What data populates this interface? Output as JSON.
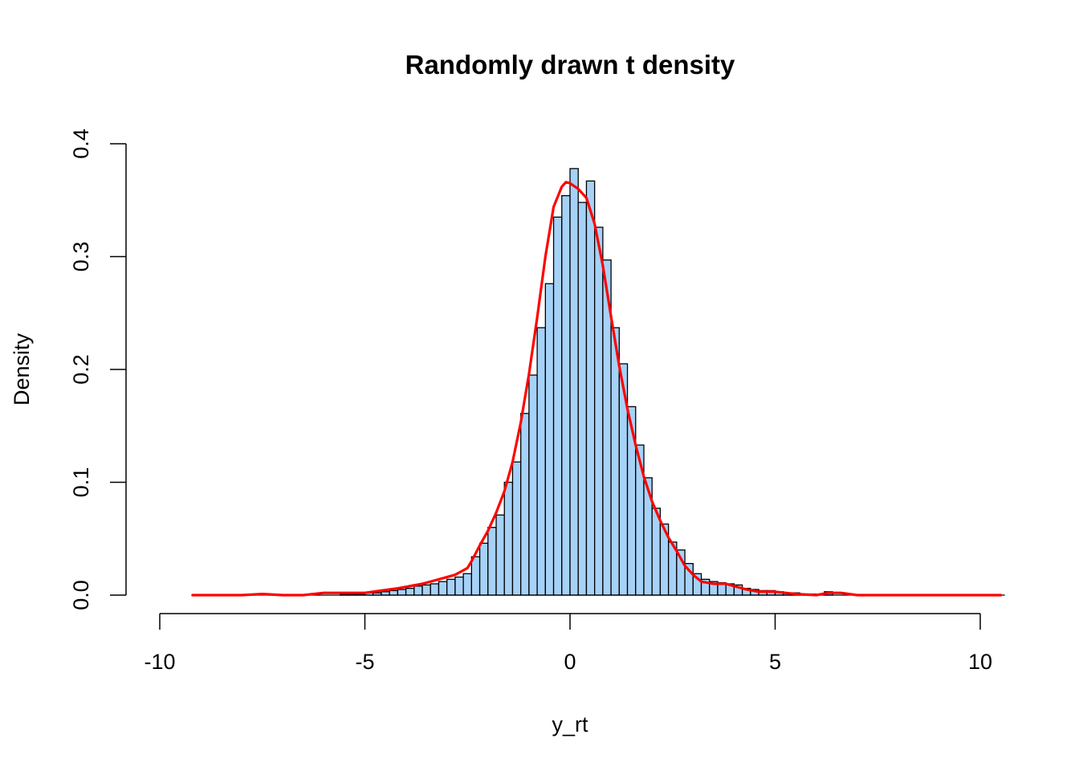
{
  "chart_data": {
    "type": "bar",
    "title": "Randomly drawn t density",
    "xlabel": "y_rt",
    "ylabel": "Density",
    "xlim": [
      -10,
      10
    ],
    "ylim": [
      0,
      0.4
    ],
    "x_ticks": [
      -10,
      -5,
      0,
      5,
      10
    ],
    "y_ticks": [
      0.0,
      0.1,
      0.2,
      0.3,
      0.4
    ],
    "x_tick_labels": [
      "-10",
      "-5",
      "0",
      "5",
      "10"
    ],
    "y_tick_labels": [
      "0.0",
      "0.1",
      "0.2",
      "0.3",
      "0.4"
    ],
    "grid": false,
    "legend": "none",
    "colors": {
      "bar_fill": "#a6d2f7",
      "bar_stroke": "#000000",
      "density_line": "#ff0000"
    },
    "histogram": {
      "bin_width": 0.2,
      "bins_start": -9.2,
      "bins_end": 10.6,
      "bars": [
        {
          "x0": -5.6,
          "density": 0.001
        },
        {
          "x0": -5.4,
          "density": 0.001
        },
        {
          "x0": -5.2,
          "density": 0.001
        },
        {
          "x0": -5.0,
          "density": 0.002
        },
        {
          "x0": -4.8,
          "density": 0.002
        },
        {
          "x0": -4.6,
          "density": 0.003
        },
        {
          "x0": -4.4,
          "density": 0.004
        },
        {
          "x0": -4.2,
          "density": 0.005
        },
        {
          "x0": -4.0,
          "density": 0.006
        },
        {
          "x0": -3.8,
          "density": 0.008
        },
        {
          "x0": -3.6,
          "density": 0.009
        },
        {
          "x0": -3.4,
          "density": 0.01
        },
        {
          "x0": -3.2,
          "density": 0.012
        },
        {
          "x0": -3.0,
          "density": 0.014
        },
        {
          "x0": -2.8,
          "density": 0.016
        },
        {
          "x0": -2.6,
          "density": 0.019
        },
        {
          "x0": -2.4,
          "density": 0.034
        },
        {
          "x0": -2.2,
          "density": 0.046
        },
        {
          "x0": -2.0,
          "density": 0.06
        },
        {
          "x0": -1.8,
          "density": 0.071
        },
        {
          "x0": -1.6,
          "density": 0.1
        },
        {
          "x0": -1.4,
          "density": 0.118
        },
        {
          "x0": -1.2,
          "density": 0.161
        },
        {
          "x0": -1.0,
          "density": 0.195
        },
        {
          "x0": -0.8,
          "density": 0.237
        },
        {
          "x0": -0.6,
          "density": 0.276
        },
        {
          "x0": -0.4,
          "density": 0.335
        },
        {
          "x0": -0.2,
          "density": 0.354
        },
        {
          "x0": 0.0,
          "density": 0.378
        },
        {
          "x0": 0.2,
          "density": 0.348
        },
        {
          "x0": 0.4,
          "density": 0.367
        },
        {
          "x0": 0.6,
          "density": 0.326
        },
        {
          "x0": 0.8,
          "density": 0.297
        },
        {
          "x0": 1.0,
          "density": 0.237
        },
        {
          "x0": 1.2,
          "density": 0.205
        },
        {
          "x0": 1.4,
          "density": 0.167
        },
        {
          "x0": 1.6,
          "density": 0.133
        },
        {
          "x0": 1.8,
          "density": 0.104
        },
        {
          "x0": 2.0,
          "density": 0.077
        },
        {
          "x0": 2.2,
          "density": 0.063
        },
        {
          "x0": 2.4,
          "density": 0.047
        },
        {
          "x0": 2.6,
          "density": 0.04
        },
        {
          "x0": 2.8,
          "density": 0.028
        },
        {
          "x0": 3.0,
          "density": 0.019
        },
        {
          "x0": 3.2,
          "density": 0.014
        },
        {
          "x0": 3.4,
          "density": 0.012
        },
        {
          "x0": 3.6,
          "density": 0.011
        },
        {
          "x0": 3.8,
          "density": 0.01
        },
        {
          "x0": 4.0,
          "density": 0.009
        },
        {
          "x0": 4.2,
          "density": 0.006
        },
        {
          "x0": 4.4,
          "density": 0.005
        },
        {
          "x0": 4.6,
          "density": 0.004
        },
        {
          "x0": 4.8,
          "density": 0.004
        },
        {
          "x0": 5.0,
          "density": 0.003
        },
        {
          "x0": 5.2,
          "density": 0.002
        },
        {
          "x0": 5.4,
          "density": 0.002
        },
        {
          "x0": 5.6,
          "density": 0.001
        },
        {
          "x0": 5.8,
          "density": 0.001
        },
        {
          "x0": 6.2,
          "density": 0.003
        }
      ]
    },
    "density_curve": {
      "name": "",
      "x": [
        -9.2,
        -8.0,
        -7.5,
        -7.0,
        -6.5,
        -6.0,
        -5.5,
        -5.0,
        -4.6,
        -4.2,
        -3.9,
        -3.6,
        -3.3,
        -3.0,
        -2.8,
        -2.6,
        -2.5,
        -2.4,
        -2.2,
        -2.0,
        -1.8,
        -1.6,
        -1.4,
        -1.2,
        -1.0,
        -0.8,
        -0.6,
        -0.4,
        -0.2,
        -0.1,
        0.0,
        0.2,
        0.4,
        0.6,
        0.8,
        1.0,
        1.2,
        1.4,
        1.6,
        1.8,
        2.0,
        2.2,
        2.4,
        2.6,
        2.8,
        3.0,
        3.2,
        3.5,
        3.8,
        4.0,
        4.3,
        4.6,
        5.0,
        5.5,
        6.0,
        6.3,
        6.6,
        7.0,
        8.0,
        9.0,
        10.5
      ],
      "y": [
        0.0,
        0.0,
        0.001,
        0.0,
        0.0,
        0.002,
        0.002,
        0.002,
        0.004,
        0.006,
        0.008,
        0.01,
        0.013,
        0.016,
        0.018,
        0.022,
        0.024,
        0.03,
        0.044,
        0.057,
        0.073,
        0.092,
        0.118,
        0.153,
        0.196,
        0.246,
        0.3,
        0.344,
        0.362,
        0.366,
        0.365,
        0.36,
        0.352,
        0.329,
        0.292,
        0.247,
        0.203,
        0.165,
        0.133,
        0.105,
        0.083,
        0.066,
        0.051,
        0.039,
        0.026,
        0.018,
        0.012,
        0.01,
        0.01,
        0.008,
        0.005,
        0.003,
        0.003,
        0.001,
        0.0,
        0.002,
        0.002,
        0.0,
        0.0,
        0.0,
        0.0
      ]
    }
  }
}
